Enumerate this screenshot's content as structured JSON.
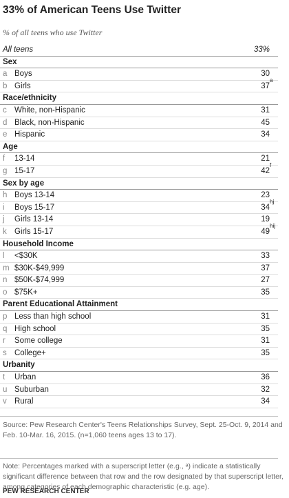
{
  "title": "33% of American Teens Use Twitter",
  "subtitle": "% of all teens who use Twitter",
  "total": {
    "label": "All teens",
    "value": "33%"
  },
  "sections": [
    {
      "heading": "Sex",
      "rows": [
        {
          "letter": "a",
          "label": "Boys",
          "value": 30
        },
        {
          "letter": "b",
          "label": "Girls",
          "value": 37,
          "sup": "a"
        }
      ]
    },
    {
      "heading": "Race/ethnicity",
      "rows": [
        {
          "letter": "c",
          "label": "White, non-Hispanic",
          "value": 31
        },
        {
          "letter": "d",
          "label": "Black, non-Hispanic",
          "value": 45
        },
        {
          "letter": "e",
          "label": "Hispanic",
          "value": 34
        }
      ]
    },
    {
      "heading": "Age",
      "rows": [
        {
          "letter": "f",
          "label": "13-14",
          "value": 21
        },
        {
          "letter": "g",
          "label": "15-17",
          "value": 42,
          "sup": "f"
        }
      ]
    },
    {
      "heading": "Sex by age",
      "rows": [
        {
          "letter": "h",
          "label": "Boys 13-14",
          "value": 23
        },
        {
          "letter": "i",
          "label": "Boys 15-17",
          "value": 34,
          "sup": "hj"
        },
        {
          "letter": "j",
          "label": "Girls 13-14",
          "value": 19
        },
        {
          "letter": "k",
          "label": "Girls 15-17",
          "value": 49,
          "sup": "hij"
        }
      ]
    },
    {
      "heading": "Household Income",
      "rows": [
        {
          "letter": "l",
          "label": "<$30K",
          "value": 33
        },
        {
          "letter": "m",
          "label": "$30K-$49,999",
          "value": 37
        },
        {
          "letter": "n",
          "label": "$50K-$74,999",
          "value": 27
        },
        {
          "letter": "o",
          "label": "$75K+",
          "value": 35
        }
      ]
    },
    {
      "heading": "Parent Educational Attainment",
      "rows": [
        {
          "letter": "p",
          "label": "Less than high school",
          "value": 31
        },
        {
          "letter": "q",
          "label": "High school",
          "value": 35
        },
        {
          "letter": "r",
          "label": "Some college",
          "value": 31
        },
        {
          "letter": "s",
          "label": "College+",
          "value": 35
        }
      ]
    },
    {
      "heading": "Urbanity",
      "rows": [
        {
          "letter": "t",
          "label": "Urban",
          "value": 36
        },
        {
          "letter": "u",
          "label": "Suburban",
          "value": 32
        },
        {
          "letter": "v",
          "label": "Rural",
          "value": 34
        }
      ]
    }
  ],
  "source": "Source: Pew Research Center's Teens Relationships Survey, Sept. 25-Oct. 9, 2014 and Feb. 10-Mar. 16, 2015. (n=1,060 teens ages 13 to 17).",
  "note": "Note: Percentages marked with a superscript letter (e.g., ᵃ) indicate a statistically significant difference between that row and the row designated by that superscript letter, among categories of each demographic characteristic (e.g. age).",
  "footer": "PEW RESEARCH CENTER"
}
